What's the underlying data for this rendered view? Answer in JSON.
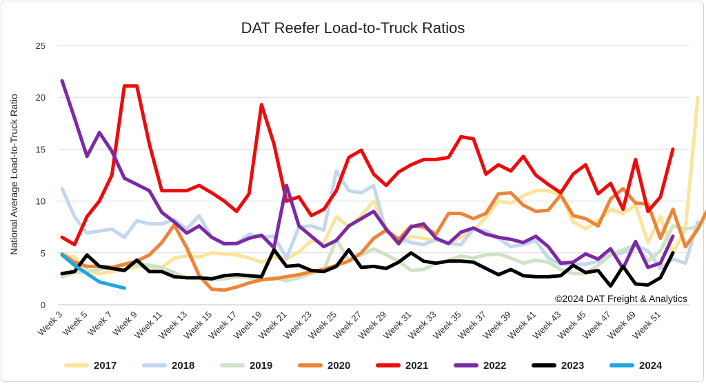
{
  "chart_data": {
    "type": "line",
    "title": "DAT Reefer Load-to-Truck Ratios",
    "xlabel": "",
    "ylabel": "National Average Load-to-Truck Ratio",
    "ylim": [
      0,
      25
    ],
    "yticks": [
      0,
      5,
      10,
      15,
      20,
      25
    ],
    "grid": "horizontal",
    "legend_position": "bottom",
    "annotation": "©2024 DAT Freight & Analytics",
    "x_start_week": 3,
    "x_end_week": 52,
    "x_tick_labels": [
      "Week 3",
      "Week 5",
      "Week 7",
      "Week 9",
      "Week 11",
      "Week 13",
      "Week 15",
      "Week 17",
      "Week 19",
      "Week 21",
      "Week 23",
      "Week 25",
      "Week 27",
      "Week 29",
      "Week 31",
      "Week 33",
      "Week 35",
      "Week 37",
      "Week 39",
      "Week 41",
      "Week 43",
      "Week 45",
      "Week 47",
      "Week 49",
      "Week 51"
    ],
    "series": [
      {
        "name": "2017",
        "color": "#fde49c",
        "values": [
          4.8,
          4.6,
          3.3,
          3.0,
          3.2,
          3.4,
          3.7,
          3.6,
          3.6,
          4.5,
          4.7,
          4.6,
          5.0,
          4.9,
          4.8,
          4.5,
          4.1,
          4.6,
          4.4,
          5.1,
          6.2,
          6.0,
          8.5,
          7.5,
          8.6,
          10.0,
          7.3,
          5.8,
          6.6,
          6.4,
          6.2,
          6.0,
          6.5,
          7.2,
          8.4,
          10.0,
          9.8,
          10.5,
          11.0,
          11.0,
          10.6,
          8.0,
          7.3,
          8.1,
          9.2,
          8.8,
          9.6,
          6.0,
          8.5,
          5.0,
          7.3,
          20.0
        ]
      },
      {
        "name": "2018",
        "color": "#c3d7ee",
        "values": [
          11.2,
          8.5,
          6.9,
          7.1,
          7.3,
          6.5,
          8.1,
          7.8,
          7.8,
          8.2,
          7.3,
          8.6,
          6.5,
          5.8,
          5.9,
          6.8,
          6.5,
          6.6,
          4.5,
          7.5,
          7.6,
          7.2,
          12.9,
          11.0,
          10.8,
          11.5,
          7.0,
          6.4,
          6.0,
          5.8,
          6.3,
          5.9,
          5.8,
          7.3,
          7.1,
          6.4,
          5.6,
          5.8,
          6.2,
          4.5,
          3.9,
          3.9,
          3.9,
          4.2,
          4.8,
          5.0,
          5.7,
          5.2,
          3.5,
          4.4,
          4.0,
          8.0
        ]
      },
      {
        "name": "2019",
        "color": "#cfe3c4",
        "values": [
          2.7,
          3.1,
          3.2,
          3.4,
          3.6,
          3.8,
          3.9,
          3.8,
          3.6,
          3.1,
          2.6,
          2.5,
          2.4,
          2.5,
          2.7,
          2.6,
          2.4,
          2.6,
          2.3,
          2.6,
          3.0,
          3.3,
          6.3,
          4.3,
          4.8,
          5.4,
          4.8,
          4.2,
          3.3,
          3.4,
          4.0,
          4.3,
          4.7,
          4.5,
          4.8,
          4.9,
          4.5,
          4.0,
          4.3,
          4.1,
          3.4,
          3.0,
          3.0,
          3.8,
          4.8,
          5.3,
          5.8,
          4.2,
          5.2,
          7.6,
          7.3,
          7.5
        ]
      },
      {
        "name": "2020",
        "color": "#ee8437",
        "values": [
          4.9,
          4.1,
          3.7,
          3.7,
          3.6,
          3.9,
          4.2,
          4.8,
          6.0,
          7.7,
          5.5,
          2.8,
          1.5,
          1.4,
          1.7,
          2.1,
          2.4,
          2.5,
          2.7,
          2.9,
          3.2,
          3.4,
          3.8,
          4.2,
          5.0,
          6.4,
          7.2,
          6.3,
          7.6,
          7.5,
          6.8,
          8.8,
          8.8,
          8.3,
          8.8,
          10.7,
          10.8,
          9.6,
          9.0,
          9.1,
          10.6,
          8.6,
          8.3,
          7.6,
          10.2,
          11.2,
          9.8,
          9.7,
          6.4,
          9.2,
          5.6,
          7.3,
          9.7
        ]
      },
      {
        "name": "2021",
        "color": "#ee0b0b",
        "values": [
          6.5,
          5.8,
          8.5,
          10.0,
          12.5,
          21.1,
          21.1,
          15.5,
          11.0,
          11.0,
          11.0,
          11.5,
          10.8,
          10.0,
          9.0,
          10.7,
          19.3,
          15.5,
          10.0,
          10.4,
          8.6,
          9.2,
          11.0,
          14.2,
          14.9,
          12.6,
          11.5,
          12.8,
          13.5,
          14.0,
          14.0,
          14.2,
          16.2,
          16.0,
          12.6,
          13.5,
          12.9,
          14.3,
          12.5,
          11.6,
          10.8,
          12.6,
          13.5,
          10.7,
          11.7,
          9.2,
          14.0,
          9.0,
          10.4,
          15.0
        ]
      },
      {
        "name": "2022",
        "color": "#7b2aa6",
        "values": [
          21.6,
          18.0,
          14.3,
          16.6,
          14.8,
          12.2,
          11.6,
          11.0,
          8.9,
          8.0,
          6.9,
          7.6,
          6.5,
          5.9,
          5.9,
          6.4,
          6.7,
          5.5,
          11.5,
          7.6,
          6.6,
          5.6,
          6.2,
          7.6,
          8.3,
          9.0,
          7.3,
          5.9,
          7.5,
          7.8,
          6.4,
          5.9,
          7.0,
          7.4,
          6.8,
          6.5,
          6.3,
          6.0,
          6.6,
          5.6,
          4.0,
          4.1,
          4.9,
          4.4,
          5.4,
          3.5,
          6.1,
          3.6,
          4.0,
          6.6
        ]
      },
      {
        "name": "2023",
        "color": "#000000",
        "values": [
          3.0,
          3.2,
          4.8,
          3.7,
          3.5,
          3.3,
          4.3,
          3.2,
          3.2,
          2.7,
          2.6,
          2.6,
          2.5,
          2.8,
          2.9,
          2.8,
          2.7,
          5.3,
          3.7,
          3.8,
          3.3,
          3.2,
          3.7,
          5.3,
          3.6,
          3.7,
          3.5,
          4.1,
          5.0,
          4.2,
          4.0,
          4.2,
          4.2,
          4.1,
          3.5,
          2.9,
          3.4,
          2.8,
          2.7,
          2.7,
          2.8,
          3.8,
          3.1,
          3.3,
          1.8,
          3.7,
          2.0,
          1.9,
          2.6,
          5.0
        ]
      },
      {
        "name": "2024",
        "color": "#1da6e0",
        "values": [
          4.8,
          3.8,
          3.0,
          2.2,
          1.9,
          1.6
        ]
      }
    ]
  }
}
